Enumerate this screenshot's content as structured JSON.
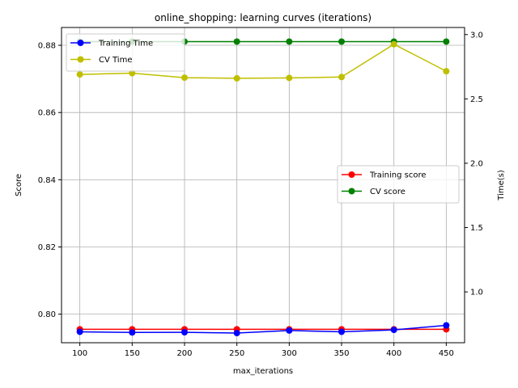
{
  "chart_data": {
    "type": "line",
    "title": "online_shopping: learning curves (iterations)",
    "xlabel": "max_iterations",
    "ylabel_left": "Score",
    "ylabel_right": "Time(s)",
    "x": [
      100,
      150,
      200,
      250,
      300,
      350,
      400,
      450
    ],
    "x_ticks": [
      "100",
      "150",
      "200",
      "250",
      "300",
      "350",
      "400",
      "450"
    ],
    "xlim": [
      82.5,
      467.5
    ],
    "ylim_left": [
      0.7915,
      0.8853
    ],
    "ylim_right": [
      0.605,
      3.055
    ],
    "y_ticks_left": [
      "0.80",
      "0.82",
      "0.84",
      "0.86",
      "0.88"
    ],
    "y_ticks_right": [
      "1.0",
      "1.5",
      "2.0",
      "2.5",
      "3.0"
    ],
    "grid": true,
    "left_series": [
      {
        "name": "Training score",
        "color": "#ff0000",
        "values": [
          0.7955,
          0.7955,
          0.7955,
          0.7955,
          0.7955,
          0.7955,
          0.7955,
          0.7955
        ]
      },
      {
        "name": "CV score",
        "color": "#008000",
        "values": [
          0.8811,
          0.8811,
          0.8811,
          0.8811,
          0.8811,
          0.8811,
          0.8811,
          0.8811
        ]
      }
    ],
    "right_series": [
      {
        "name": "Training Time",
        "color": "#0000ff",
        "values": [
          0.69,
          0.685,
          0.686,
          0.68,
          0.7,
          0.69,
          0.705,
          0.74
        ]
      },
      {
        "name": "CV Time",
        "color": "#bfbf00",
        "values": [
          2.69,
          2.7,
          2.665,
          2.66,
          2.663,
          2.67,
          2.925,
          2.715
        ]
      }
    ],
    "legend_left_placement": "center-right",
    "legend_right_placement": "upper-left"
  }
}
